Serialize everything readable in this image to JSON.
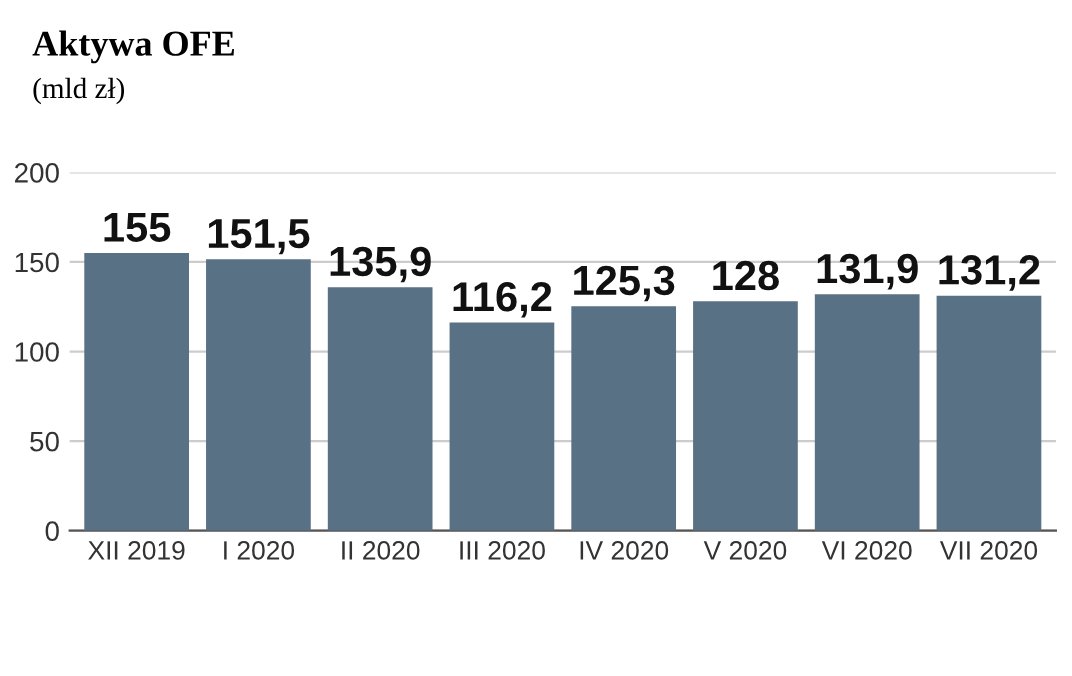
{
  "chart_data": {
    "type": "bar",
    "title": "Aktywa OFE",
    "subtitle": "(mld zł)",
    "categories": [
      "XII 2019",
      "I 2020",
      "II 2020",
      "III 2020",
      "IV 2020",
      "V 2020",
      "VI 2020",
      "VII 2020"
    ],
    "values": [
      155,
      151.5,
      135.9,
      116.2,
      125.3,
      128,
      131.9,
      131.2
    ],
    "value_labels": [
      "155",
      "151,5",
      "135,9",
      "116,2",
      "125,3",
      "128",
      "131,9",
      "131,2"
    ],
    "color": "#597185",
    "ylim": [
      0,
      200
    ],
    "yticks": [
      0,
      50,
      100,
      150,
      200
    ],
    "grid": "y"
  }
}
